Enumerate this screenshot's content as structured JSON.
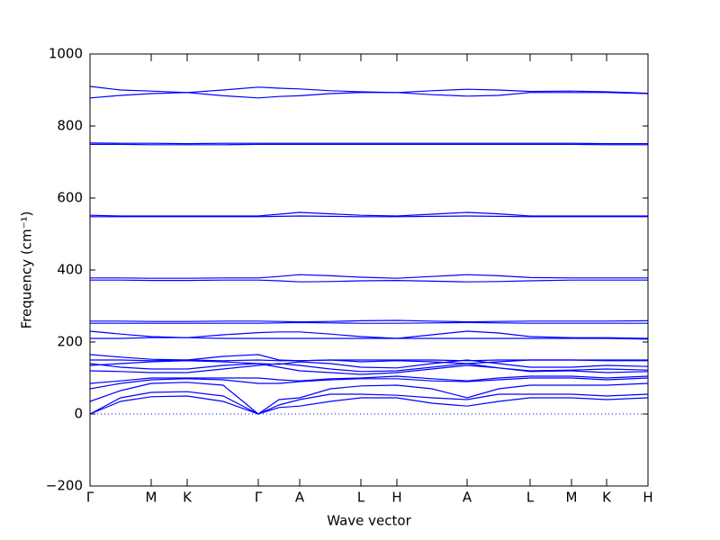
{
  "chart_data": {
    "type": "line",
    "x_label": "Wave vector",
    "y_label": "Frequency (cm⁻¹)",
    "color": "#0000ff",
    "x": [
      0,
      34,
      68,
      108,
      148,
      187,
      210,
      233,
      267,
      301,
      341,
      380,
      419,
      454,
      489,
      535,
      574,
      620
    ],
    "series": [
      {
        "values": [
          910,
          900,
          897,
          893,
          900,
          908,
          905,
          903,
          898,
          895,
          893,
          898,
          902,
          900,
          896,
          897,
          895,
          891
        ]
      },
      {
        "values": [
          878,
          885,
          890,
          893,
          884,
          878,
          882,
          884,
          890,
          893,
          893,
          887,
          883,
          885,
          893,
          893,
          893,
          890
        ]
      },
      {
        "values": [
          753,
          752,
          752,
          751,
          752,
          752,
          752,
          752,
          752,
          752,
          752,
          752,
          752,
          752,
          752,
          752,
          751,
          751
        ]
      },
      {
        "values": [
          749,
          749,
          748,
          748,
          748,
          749,
          749,
          749,
          749,
          749,
          749,
          749,
          749,
          749,
          749,
          749,
          748,
          748
        ]
      },
      {
        "values": [
          552,
          550,
          550,
          550,
          550,
          550,
          555,
          560,
          556,
          552,
          550,
          555,
          560,
          556,
          550,
          550,
          550,
          550
        ]
      },
      {
        "values": [
          548,
          548,
          548,
          548,
          548,
          548,
          549,
          550,
          549,
          548,
          548,
          549,
          550,
          549,
          548,
          548,
          548,
          548
        ]
      },
      {
        "values": [
          378,
          378,
          377,
          377,
          378,
          378,
          382,
          387,
          384,
          380,
          377,
          382,
          387,
          384,
          379,
          378,
          378,
          378
        ]
      },
      {
        "values": [
          372,
          372,
          371,
          371,
          372,
          372,
          370,
          367,
          368,
          370,
          371,
          369,
          367,
          368,
          370,
          372,
          372,
          372
        ]
      },
      {
        "values": [
          258,
          258,
          257,
          257,
          258,
          258,
          257,
          256,
          257,
          259,
          260,
          258,
          256,
          257,
          258,
          258,
          258,
          259
        ]
      },
      {
        "values": [
          252,
          252,
          252,
          252,
          252,
          252,
          253,
          254,
          253,
          252,
          252,
          253,
          254,
          253,
          252,
          252,
          252,
          252
        ]
      },
      {
        "values": [
          230,
          222,
          215,
          212,
          220,
          226,
          228,
          228,
          222,
          215,
          210,
          220,
          230,
          225,
          215,
          212,
          212,
          210
        ]
      },
      {
        "values": [
          210,
          210,
          212,
          212,
          210,
          210,
          210,
          210,
          210,
          210,
          210,
          210,
          210,
          210,
          210,
          210,
          210,
          208
        ]
      },
      {
        "values": [
          165,
          158,
          152,
          150,
          160,
          165,
          150,
          148,
          150,
          145,
          148,
          145,
          140,
          145,
          150,
          150,
          148,
          148
        ]
      },
      {
        "values": [
          150,
          150,
          148,
          150,
          148,
          150,
          148,
          148,
          150,
          150,
          150,
          150,
          148,
          150,
          150,
          150,
          150,
          150
        ]
      },
      {
        "values": [
          140,
          130,
          125,
          125,
          135,
          140,
          138,
          145,
          140,
          130,
          128,
          140,
          150,
          140,
          130,
          130,
          135,
          132
        ]
      },
      {
        "values": [
          135,
          140,
          145,
          148,
          145,
          140,
          130,
          120,
          115,
          110,
          115,
          125,
          135,
          128,
          120,
          122,
          125,
          122
        ]
      },
      {
        "values": [
          120,
          118,
          115,
          115,
          125,
          135,
          140,
          135,
          125,
          118,
          120,
          130,
          140,
          128,
          118,
          120,
          115,
          118
        ]
      },
      {
        "values": [
          85,
          92,
          100,
          100,
          100,
          100,
          95,
          92,
          98,
          100,
          105,
          98,
          92,
          100,
          105,
          105,
          100,
          105
        ]
      },
      {
        "values": [
          70,
          85,
          95,
          98,
          95,
          85,
          85,
          90,
          95,
          98,
          98,
          92,
          90,
          95,
          100,
          100,
          95,
          100
        ]
      },
      {
        "values": [
          35,
          65,
          85,
          88,
          80,
          0,
          40,
          45,
          70,
          78,
          80,
          70,
          45,
          70,
          80,
          80,
          80,
          85
        ]
      },
      {
        "values": [
          0,
          45,
          60,
          62,
          50,
          0,
          25,
          40,
          55,
          55,
          52,
          45,
          40,
          55,
          55,
          55,
          50,
          55
        ]
      },
      {
        "values": [
          0,
          35,
          48,
          50,
          35,
          0,
          18,
          22,
          35,
          45,
          45,
          30,
          22,
          35,
          45,
          45,
          40,
          45
        ]
      }
    ],
    "xlim": [
      0,
      620
    ],
    "xticks": [
      {
        "value": 0,
        "label": "Γ"
      },
      {
        "value": 68,
        "label": "M"
      },
      {
        "value": 108,
        "label": "K"
      },
      {
        "value": 187,
        "label": "Γ"
      },
      {
        "value": 233,
        "label": "A"
      },
      {
        "value": 301,
        "label": "L"
      },
      {
        "value": 341,
        "label": "H"
      },
      {
        "value": 419,
        "label": "A"
      },
      {
        "value": 489,
        "label": "L"
      },
      {
        "value": 535,
        "label": "M"
      },
      {
        "value": 574,
        "label": "K"
      },
      {
        "value": 620,
        "label": "H"
      }
    ],
    "ylim": [
      -200,
      1000
    ],
    "yticks": [
      {
        "value": -200,
        "label": "−200"
      },
      0,
      200,
      400,
      600,
      800,
      1000
    ]
  }
}
